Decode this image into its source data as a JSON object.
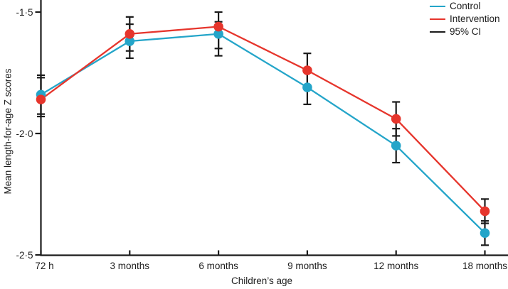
{
  "legend": [
    {
      "label": "Control",
      "color": "#24a5c9"
    },
    {
      "label": "Intervention",
      "color": "#e6352c"
    },
    {
      "label": "95% CI",
      "color": "#1b1b1b"
    }
  ],
  "chart_data": {
    "type": "line",
    "title": "",
    "xlabel": "Children’s age",
    "ylabel": "Mean length-for-age Z scores",
    "categories": [
      "72 h",
      "3 months",
      "6 months",
      "9 months",
      "12 months",
      "18 months"
    ],
    "y_ticks": [
      "-1·5",
      "-2·0",
      "-2·5"
    ],
    "y_tick_values": [
      -1.5,
      -2.0,
      -2.5
    ],
    "ylim": [
      -2.55,
      -1.45
    ],
    "grid": false,
    "legend_position": "top-right",
    "error_bar_label": "95% CI",
    "error_bar_color": "#1b1b1b",
    "series": [
      {
        "name": "Control",
        "color": "#24a5c9",
        "values": [
          -1.84,
          -1.62,
          -1.59,
          -1.81,
          -2.05,
          -2.41
        ],
        "ci_lower": [
          -1.92,
          -1.69,
          -1.68,
          -1.88,
          -2.12,
          -2.46
        ],
        "ci_upper": [
          -1.76,
          -1.55,
          -1.54,
          -1.74,
          -1.98,
          -2.36
        ]
      },
      {
        "name": "Intervention",
        "color": "#e6352c",
        "values": [
          -1.86,
          -1.59,
          -1.56,
          -1.74,
          -1.94,
          -2.32
        ],
        "ci_lower": [
          -1.93,
          -1.66,
          -1.65,
          -1.81,
          -2.01,
          -2.37
        ],
        "ci_upper": [
          -1.77,
          -1.52,
          -1.5,
          -1.67,
          -1.87,
          -2.27
        ]
      }
    ]
  }
}
